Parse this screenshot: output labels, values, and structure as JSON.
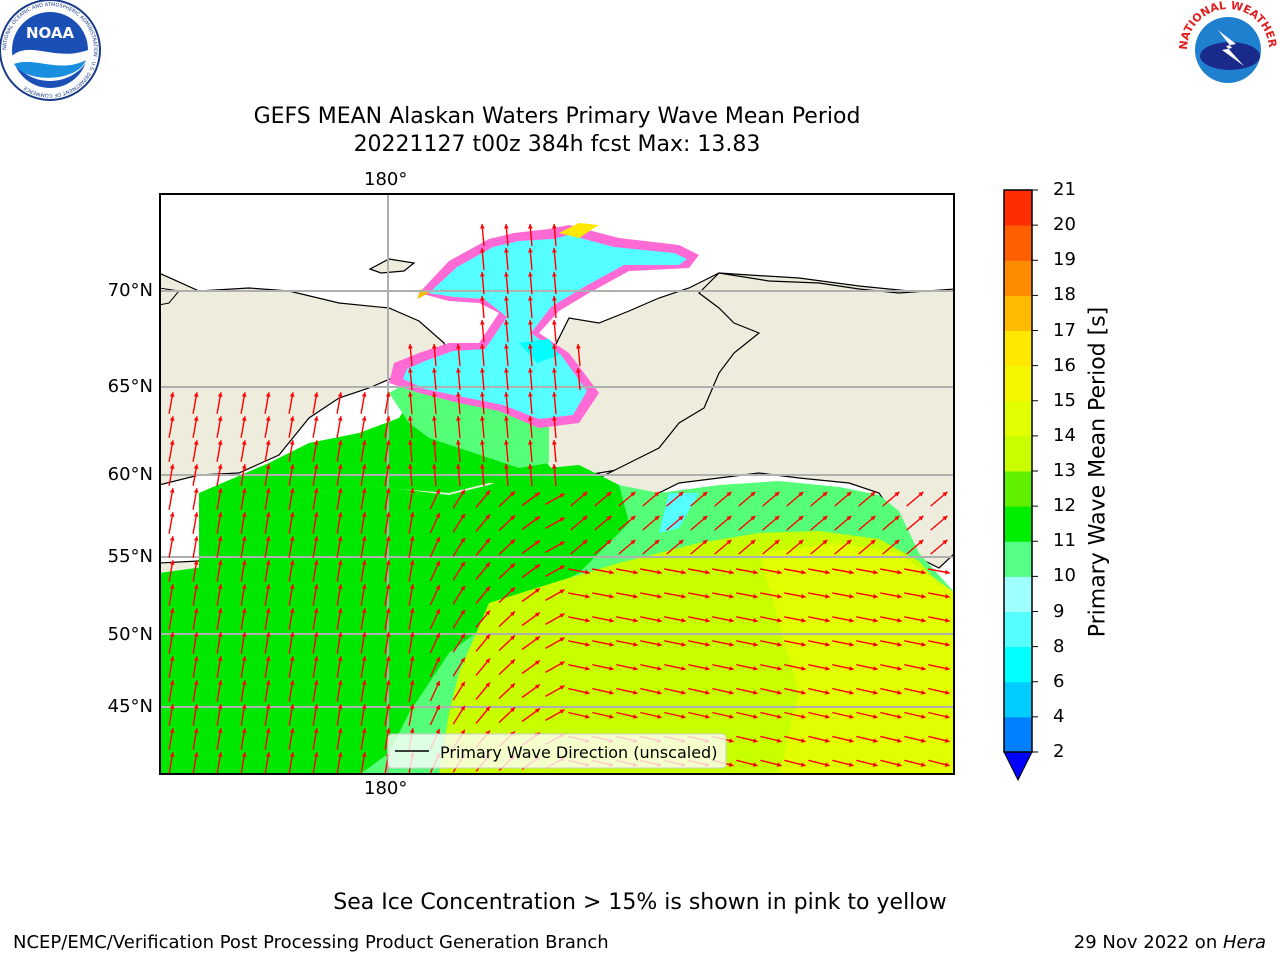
{
  "header": {
    "title_line1": "GEFS MEAN Alaskan Waters Primary Wave Mean Period",
    "title_line2": "20221127 t00z 384h fcst   Max: 13.83",
    "logo_left_text": "NOAA",
    "logo_left_ring_text": "NATIONAL OCEANIC AND ATMOSPHERIC ADMINISTRATION · U.S. DEPARTMENT OF COMMERCE",
    "logo_right_ring_text": "NATIONAL WEATHER SERVICE"
  },
  "map": {
    "top_lon_label": "180°",
    "bottom_lon_label": "180°",
    "lat_labels": [
      "70°N",
      "65°N",
      "60°N",
      "55°N",
      "50°N",
      "45°N"
    ],
    "legend_label": "Primary Wave Direction (unscaled)",
    "colors": {
      "land": "#eeecdc",
      "period_9_10": "#55ff78",
      "period_10_11": "#00e800",
      "period_12_13": "#c8ff00",
      "period_13_14": "#e2ff00",
      "ice_cyan": "#55ffff",
      "ice_pink": "#ff6ad5",
      "ice_magenta": "#ff33ff",
      "arrow": "#ff0000"
    }
  },
  "colorbar": {
    "label": "Primary Wave Mean Period [s]",
    "ticks": [
      "2",
      "4",
      "6",
      "8",
      "9",
      "10",
      "11",
      "12",
      "13",
      "14",
      "15",
      "16",
      "17",
      "18",
      "19",
      "20",
      "21"
    ],
    "colors": [
      "#0080ff",
      "#00ccff",
      "#00ffff",
      "#55ffff",
      "#a0ffff",
      "#55ff88",
      "#00ee00",
      "#60f000",
      "#c8ff00",
      "#e2ff00",
      "#f6f600",
      "#ffe800",
      "#ffbb00",
      "#ff8c00",
      "#ff5e00",
      "#ff2e00",
      "#ff0000"
    ],
    "under_color": "#0000ff"
  },
  "footer": {
    "note": "Sea Ice Concentration > 15% is shown in pink to yellow",
    "left": "NCEP/EMC/Verification Post Processing Product Generation Branch",
    "right_prefix": "29 Nov 2022 on ",
    "right_host": "Hera"
  }
}
